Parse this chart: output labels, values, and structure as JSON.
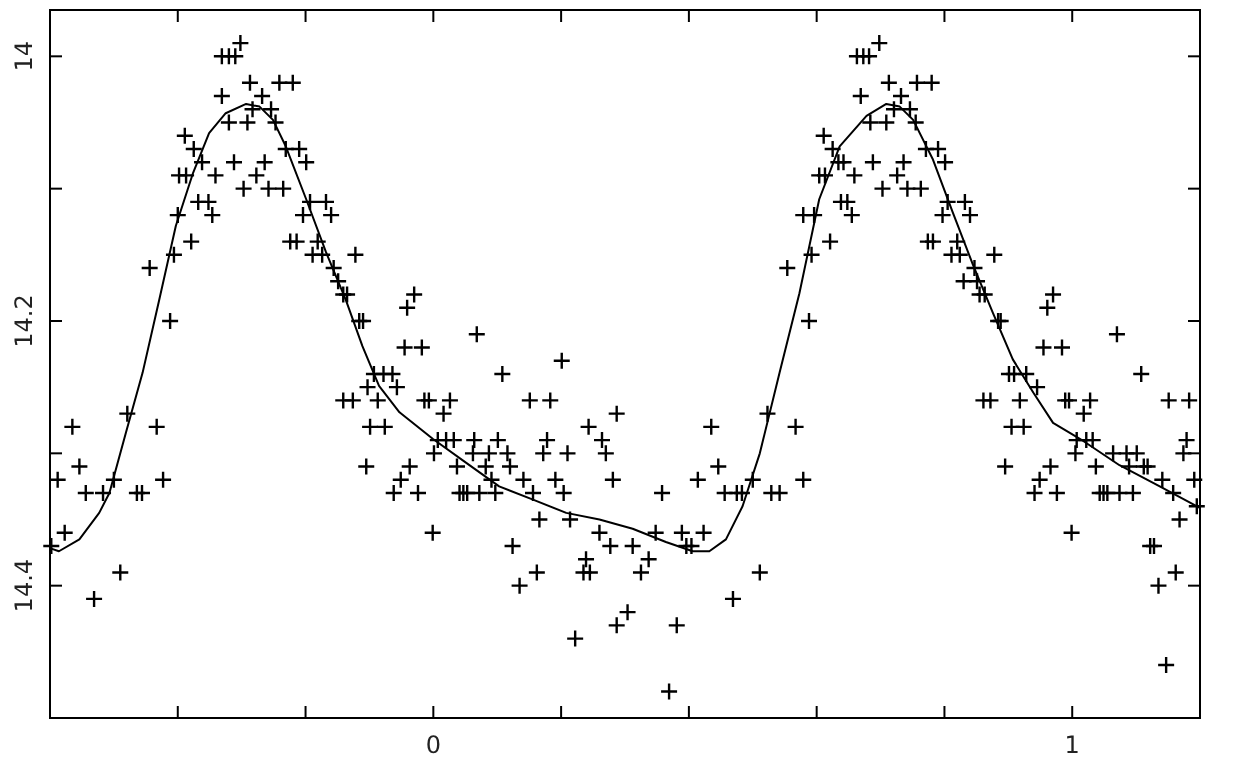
{
  "chart_data": {
    "type": "scatter",
    "xlim": [
      -0.6,
      1.2
    ],
    "ylim": [
      14.5,
      13.965
    ],
    "xticks": [
      {
        "value": -0.4,
        "label": null
      },
      {
        "value": -0.2,
        "label": null
      },
      0,
      {
        "value": 0.2,
        "label": null
      },
      {
        "value": 0.4,
        "label": null
      },
      {
        "value": 0.6,
        "label": null
      },
      {
        "value": 0.8,
        "label": null
      },
      1
    ],
    "yticks": [
      14,
      {
        "value": 14.1,
        "label": null
      },
      14.2,
      {
        "value": 14.3,
        "label": null
      },
      14.4,
      {
        "value": 14.5,
        "label": null
      }
    ],
    "grid": false,
    "series": [
      {
        "color": "#000000",
        "marker": "cross",
        "x": [
          -0.598,
          -0.588,
          -0.577,
          -0.565,
          -0.554,
          -0.544,
          -0.531,
          -0.517,
          -0.5,
          -0.49,
          -0.479,
          -0.464,
          -0.456,
          -0.444,
          -0.433,
          -0.423,
          -0.412,
          -0.406,
          -0.4,
          -0.389,
          -0.398,
          -0.387,
          -0.379,
          -0.375,
          -0.368,
          -0.362,
          -0.352,
          -0.346,
          -0.341,
          -0.331,
          -0.32,
          -0.31,
          -0.302,
          -0.331,
          -0.32,
          -0.312,
          -0.297,
          -0.291,
          -0.287,
          -0.283,
          -0.277,
          -0.268,
          -0.264,
          -0.258,
          -0.254,
          -0.247,
          -0.241,
          -0.235,
          -0.231,
          -0.22,
          -0.224,
          -0.214,
          -0.21,
          -0.199,
          -0.204,
          -0.193,
          -0.189,
          -0.181,
          -0.174,
          -0.168,
          -0.16,
          -0.156,
          -0.149,
          -0.141,
          -0.135,
          -0.122,
          -0.116,
          -0.11,
          -0.141,
          -0.126,
          -0.103,
          -0.099,
          -0.093,
          -0.087,
          -0.076,
          -0.078,
          -0.064,
          -0.057,
          -0.105,
          -0.062,
          -0.051,
          -0.045,
          -0.037,
          -0.041,
          -0.03,
          -0.024,
          -0.018,
          -0.014,
          -0.007,
          0.001,
          -0.001,
          0.016,
          0.026,
          0.007,
          0.02,
          0.032,
          0.037,
          0.041,
          0.047,
          0.053,
          0.062,
          0.064,
          0.068,
          0.072,
          0.082,
          0.087,
          0.091,
          0.097,
          0.101,
          0.108,
          0.116,
          0.12,
          0.124,
          0.135,
          0.141,
          0.151,
          0.156,
          0.162,
          0.166,
          0.172,
          0.178,
          0.183,
          0.191,
          0.201,
          0.204,
          0.21,
          0.214,
          0.222,
          0.235,
          0.239,
          0.243,
          0.245,
          0.26,
          0.264,
          0.27,
          0.277,
          0.281,
          0.287,
          0.287,
          0.304,
          0.312,
          0.325,
          0.337,
          0.348,
          0.358,
          0.369,
          0.381,
          0.389,
          0.396,
          0.404,
          0.423,
          0.414,
          0.435,
          0.446,
          0.456,
          0.469,
          0.475,
          0.483,
          0.5,
          0.511,
          0.523,
          0.529,
          0.542,
          0.554,
          0.567,
          0.579,
          0.588,
          0.592,
          0.579,
          0.596,
          0.604,
          0.611,
          0.613,
          0.621,
          0.625,
          0.634,
          0.638,
          0.642,
          0.648,
          0.655,
          0.659,
          0.663,
          0.673,
          0.682,
          0.698,
          0.669,
          0.684,
          0.688,
          0.703,
          0.709,
          0.713,
          0.721,
          0.726,
          0.732,
          0.736,
          0.742,
          0.746,
          0.755,
          0.757,
          0.763,
          0.771,
          0.78,
          0.774,
          0.782,
          0.79,
          0.801,
          0.797,
          0.805,
          0.811,
          0.82,
          0.824,
          0.832,
          0.84,
          0.83,
          0.847,
          0.851,
          0.855,
          0.863,
          0.878,
          0.884,
          0.888,
          0.861,
          0.872,
          0.901,
          0.905,
          0.909,
          0.918,
          0.924,
          0.928,
          0.945,
          0.895,
          0.941,
          0.949,
          0.955,
          0.966,
          0.961,
          0.97,
          0.976,
          0.984,
          0.989,
          0.995,
          1.005,
          0.999,
          1.018,
          1.028,
          1.007,
          1.022,
          1.032,
          1.037,
          1.043,
          1.049,
          1.055,
          1.064,
          1.07,
          1.074,
          1.085,
          1.089,
          1.095,
          1.101,
          1.108,
          1.112,
          1.118,
          1.122,
          1.128,
          1.135,
          1.141,
          1.147,
          1.151,
          1.158,
          1.162,
          1.168,
          1.174,
          1.179,
          1.183,
          1.191,
          1.195
        ],
        "values": [
          14.37,
          14.32,
          14.36,
          14.28,
          14.31,
          14.33,
          14.41,
          14.33,
          14.32,
          14.39,
          14.27,
          14.33,
          14.33,
          14.16,
          14.28,
          14.32,
          14.2,
          14.15,
          14.12,
          14.06,
          14.09,
          14.09,
          14.14,
          14.07,
          14.11,
          14.08,
          14.11,
          14.12,
          14.09,
          14,
          14,
          14,
          13.99,
          14.03,
          14.05,
          14.08,
          14.1,
          14.05,
          14.02,
          14.04,
          14.09,
          14.03,
          14.08,
          14.1,
          14.04,
          14.05,
          14.02,
          14.1,
          14.07,
          14.02,
          14.14,
          14.14,
          14.07,
          14.08,
          14.12,
          14.11,
          14.15,
          14.14,
          14.15,
          14.11,
          14.12,
          14.16,
          14.17,
          14.18,
          14.18,
          14.15,
          14.2,
          14.2,
          14.26,
          14.26,
          14.25,
          14.28,
          14.24,
          14.26,
          14.28,
          14.24,
          14.24,
          14.25,
          14.31,
          14.33,
          14.32,
          14.22,
          14.31,
          14.19,
          14.18,
          14.33,
          14.22,
          14.26,
          14.26,
          14.3,
          14.36,
          14.27,
          14.26,
          14.29,
          14.29,
          14.29,
          14.31,
          14.33,
          14.33,
          14.33,
          14.3,
          14.29,
          14.21,
          14.33,
          14.31,
          14.3,
          14.32,
          14.33,
          14.29,
          14.24,
          14.3,
          14.31,
          14.37,
          14.4,
          14.32,
          14.26,
          14.33,
          14.39,
          14.35,
          14.3,
          14.29,
          14.26,
          14.32,
          14.23,
          14.33,
          14.3,
          14.35,
          14.44,
          14.39,
          14.38,
          14.28,
          14.39,
          14.36,
          14.29,
          14.3,
          14.37,
          14.32,
          14.27,
          14.43,
          14.42,
          14.37,
          14.39,
          14.38,
          14.36,
          14.33,
          14.48,
          14.43,
          14.36,
          14.37,
          14.37,
          14.36,
          14.32,
          14.28,
          14.31,
          14.33,
          14.41,
          14.33,
          14.33,
          14.32,
          14.39,
          14.27,
          14.33,
          14.33,
          14.16,
          14.28,
          14.32,
          14.2,
          14.15,
          14.12,
          14.12,
          14.09,
          14.06,
          14.09,
          14.14,
          14.07,
          14.08,
          14.11,
          14.08,
          14.11,
          14.12,
          14.09,
          14,
          14,
          14,
          13.99,
          14.03,
          14.05,
          14.08,
          14.1,
          14.05,
          14.02,
          14.04,
          14.09,
          14.03,
          14.08,
          14.1,
          14.04,
          14.05,
          14.02,
          14.1,
          14.07,
          14.02,
          14.14,
          14.14,
          14.07,
          14.08,
          14.12,
          14.11,
          14.15,
          14.14,
          14.15,
          14.11,
          14.12,
          14.17,
          14.16,
          14.17,
          14.18,
          14.18,
          14.15,
          14.2,
          14.2,
          14.26,
          14.26,
          14.24,
          14.28,
          14.24,
          14.26,
          14.28,
          14.24,
          14.25,
          14.31,
          14.33,
          14.32,
          14.22,
          14.31,
          14.19,
          14.18,
          14.33,
          14.22,
          14.26,
          14.26,
          14.3,
          14.36,
          14.27,
          14.26,
          14.29,
          14.29,
          14.29,
          14.31,
          14.33,
          14.33,
          14.33,
          14.3,
          14.21,
          14.33,
          14.3,
          14.31,
          14.33,
          14.3,
          14.24,
          14.31,
          14.31,
          14.37,
          14.37,
          14.4,
          14.32,
          14.46,
          14.26,
          14.33,
          14.39,
          14.35,
          14.3,
          14.29,
          14.26,
          14.32,
          14.34
        ]
      },
      {
        "type": "line",
        "color": "#000000",
        "line_style": "solid",
        "x": [
          -0.598,
          -0.586,
          -0.554,
          -0.523,
          -0.507,
          -0.481,
          -0.455,
          -0.429,
          -0.403,
          -0.376,
          -0.351,
          -0.325,
          -0.293,
          -0.272,
          -0.251,
          -0.231,
          -0.199,
          -0.168,
          -0.137,
          -0.111,
          -0.085,
          -0.053,
          -0.001,
          0.051,
          0.103,
          0.156,
          0.208,
          0.26,
          0.312,
          0.364,
          0.406,
          0.432,
          0.458,
          0.484,
          0.511,
          0.542,
          0.573,
          0.604,
          0.636,
          0.678,
          0.709,
          0.73,
          0.751,
          0.782,
          0.813,
          0.845,
          0.876,
          0.907,
          0.939,
          0.97,
          1.012,
          1.074,
          1.137,
          1.199
        ],
        "values": [
          14.372,
          14.374,
          14.365,
          14.345,
          14.33,
          14.284,
          14.239,
          14.184,
          14.128,
          14.088,
          14.058,
          14.043,
          14.036,
          14.038,
          14.048,
          14.068,
          14.108,
          14.148,
          14.184,
          14.219,
          14.249,
          14.269,
          14.289,
          14.307,
          14.325,
          14.335,
          14.345,
          14.35,
          14.357,
          14.367,
          14.374,
          14.374,
          14.365,
          14.34,
          14.3,
          14.239,
          14.179,
          14.108,
          14.068,
          14.045,
          14.036,
          14.038,
          14.048,
          14.078,
          14.118,
          14.158,
          14.194,
          14.229,
          14.254,
          14.277,
          14.289,
          14.309,
          14.325,
          14.341
        ]
      }
    ]
  }
}
